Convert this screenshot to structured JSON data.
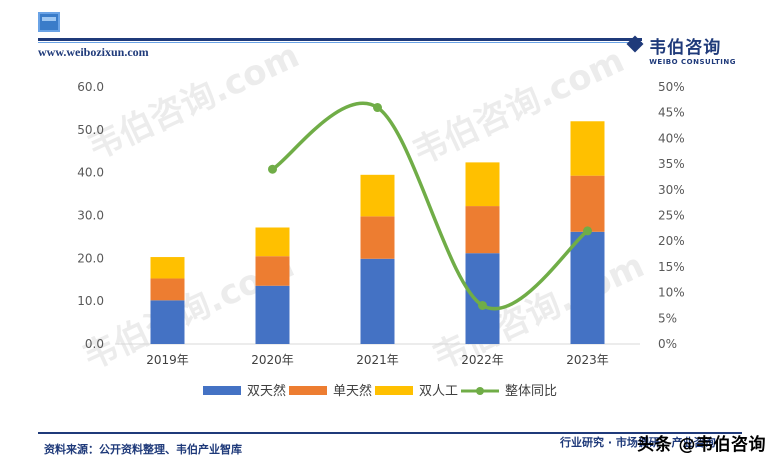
{
  "header": {
    "url": "www.weibozixun.com",
    "brand_name": "韦伯咨询",
    "brand_sub": "WEIBO CONSULTING"
  },
  "footer": {
    "source": "资料来源：公开资料整理、韦伯产业智库",
    "right_text": "行业研究 · 市场调研 · 产业咨询",
    "toutiao": "头条 @韦伯咨询"
  },
  "watermark": "韦伯咨询.com",
  "chart_data": {
    "type": "bar",
    "stacked": true,
    "categories": [
      "2019年",
      "2020年",
      "2021年",
      "2022年",
      "2023年"
    ],
    "series": [
      {
        "name": "双天然",
        "color": "#4472c4",
        "values": [
          10.2,
          13.6,
          19.9,
          21.2,
          26.2
        ]
      },
      {
        "name": "单天然",
        "color": "#ed7d31",
        "values": [
          5.1,
          6.9,
          9.9,
          11.0,
          13.1
        ]
      },
      {
        "name": "双人工",
        "color": "#ffc000",
        "values": [
          5.0,
          6.7,
          9.7,
          10.2,
          12.7
        ]
      }
    ],
    "line": {
      "name": "整体同比",
      "color": "#70ad47",
      "axis": "right",
      "values": [
        null,
        0.34,
        0.46,
        0.075,
        0.22
      ]
    },
    "ylim_left": [
      0,
      60
    ],
    "ylim_right": [
      0,
      0.5
    ],
    "left_ticks": [
      "0.0",
      "10.0",
      "20.0",
      "30.0",
      "40.0",
      "50.0",
      "60.0"
    ],
    "right_ticks": [
      "0%",
      "5%",
      "10%",
      "15%",
      "20%",
      "25%",
      "30%",
      "35%",
      "40%",
      "45%",
      "50%"
    ],
    "legend": "bottom"
  }
}
